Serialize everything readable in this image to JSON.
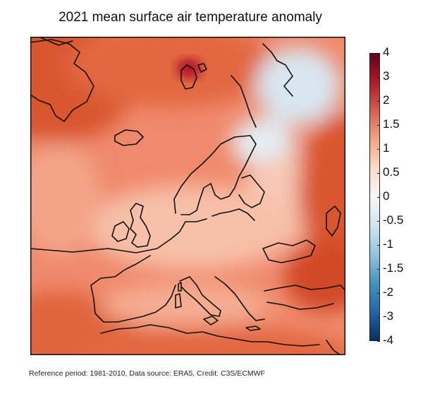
{
  "title": "2021 mean surface air temperature anomaly",
  "colorbar": {
    "ticks": [
      "4",
      "3",
      "2",
      "1.5",
      "1",
      "0.5",
      "0",
      "-0.5",
      "-1",
      "-1.5",
      "-2",
      "-3",
      "-4"
    ],
    "colors": [
      "#67001f",
      "#b2182b",
      "#d6604d",
      "#f4a582",
      "#fddbc7",
      "#f7f7f7",
      "#d1e5f0",
      "#92c5de",
      "#4393c3",
      "#2166ac",
      "#053061"
    ]
  },
  "map": {
    "region": "Europe",
    "base_color": "#f4a582",
    "warm_color": "#d6604d",
    "hot_color": "#b2182b",
    "cool_color": "#d1e5f0",
    "coast_color": "#111111"
  },
  "footer": "Reference period: 1981-2010, Data source: ERA5, Credit: C3S/ECMWF"
}
